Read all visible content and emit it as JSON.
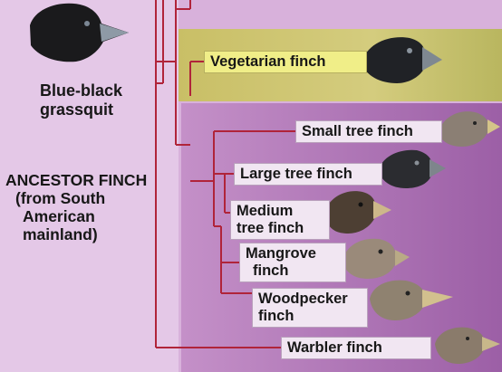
{
  "ancestor": {
    "label": "ANCESTOR FINCH",
    "note_line1": "(from South",
    "note_line2": "American",
    "note_line3": "mainland)"
  },
  "outgroup": {
    "line1": "Blue-black",
    "line2": "grassquit"
  },
  "groups": {
    "ground": {
      "color": "#c9c56e"
    },
    "tree": {
      "color": "#c79acb"
    }
  },
  "finches": {
    "vegetarian": {
      "name": "Vegetarian finch",
      "icon": "vegetarian-finch-head"
    },
    "small_tree": {
      "name": "Small tree finch",
      "icon": "small-tree-finch-head"
    },
    "large_tree": {
      "name": "Large tree finch",
      "icon": "large-tree-finch-head"
    },
    "medium_tree": {
      "line1": "Medium",
      "line2": "tree finch",
      "icon": "medium-tree-finch-head"
    },
    "mangrove": {
      "line1": "Mangrove",
      "line2": "finch",
      "icon": "mangrove-finch-head"
    },
    "woodpecker": {
      "line1": "Woodpecker",
      "line2": "finch",
      "icon": "woodpecker-finch-head"
    },
    "warbler": {
      "name": "Warbler finch",
      "icon": "warbler-finch-head"
    }
  },
  "colors": {
    "tree_line": "#b0243a",
    "label_fill": "#f1e6f2",
    "text": "#171717"
  }
}
